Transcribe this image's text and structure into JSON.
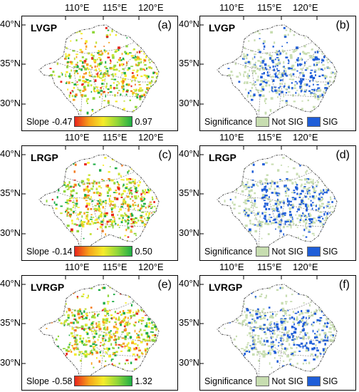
{
  "axis": {
    "lon_labels": [
      "110°E",
      "115°E",
      "120°E"
    ],
    "lat_labels": [
      "40°N",
      "35°N",
      "30°N"
    ]
  },
  "panels": [
    {
      "id": "a",
      "variable": "LVGP",
      "letter": "(a)",
      "type": "slope",
      "legend_title": "Slope",
      "min": "-0.47",
      "max": "0.97"
    },
    {
      "id": "b",
      "variable": "LVGP",
      "letter": "(b)",
      "type": "significance",
      "legend_title": "Significance",
      "not_sig": "Not SIG",
      "sig": "SIG"
    },
    {
      "id": "c",
      "variable": "LRGP",
      "letter": "(c)",
      "type": "slope",
      "legend_title": "Slope",
      "min": "-0.14",
      "max": "0.50"
    },
    {
      "id": "d",
      "variable": "LRGP",
      "letter": "(d)",
      "type": "significance",
      "legend_title": "Significance",
      "not_sig": "Not SIG",
      "sig": "SIG"
    },
    {
      "id": "e",
      "variable": "LVRGP",
      "letter": "(e)",
      "type": "slope",
      "legend_title": "Slope",
      "min": "-0.58",
      "max": "1.32"
    },
    {
      "id": "f",
      "variable": "LVRGP",
      "letter": "(f)",
      "type": "significance",
      "legend_title": "Significance",
      "not_sig": "Not SIG",
      "sig": "SIG"
    }
  ],
  "colors": {
    "slope_low": "#e8251b",
    "slope_mid": "#f5ec2a",
    "slope_high": "#1fae45",
    "not_sig": "#c7ddb0",
    "sig": "#1f5ed8",
    "boundary": "#555555"
  }
}
